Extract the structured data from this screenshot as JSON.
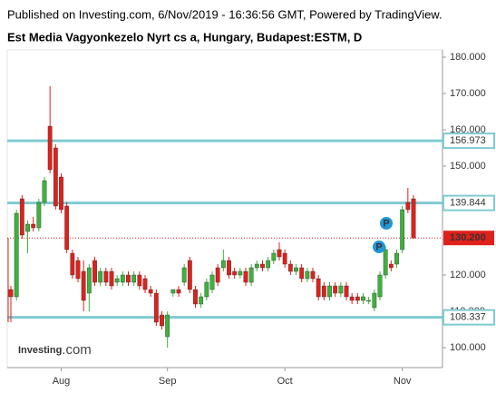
{
  "chart_data": {
    "type": "candlestick",
    "subtitle": "Published on Investing.com, 6/Nov/2019 - 16:36:56 GMT, Powered by TradingView.",
    "title": "Est Media Vagyonkezelo Nyrt cs a, Hungary, Budapest:ESTM, D",
    "logo": {
      "main": "Investing",
      "suffix": ".com"
    },
    "categories": [
      null,
      null,
      null,
      null,
      null,
      null,
      null,
      null,
      null,
      "Aug",
      null,
      null,
      null,
      null,
      null,
      null,
      null,
      null,
      null,
      null,
      null,
      null,
      null,
      null,
      null,
      null,
      null,
      null,
      "Sep",
      null,
      null,
      null,
      null,
      null,
      null,
      null,
      null,
      null,
      null,
      null,
      null,
      null,
      null,
      null,
      null,
      null,
      null,
      null,
      null,
      "Oct",
      null,
      null,
      null,
      null,
      null,
      null,
      null,
      null,
      null,
      null,
      null,
      null,
      null,
      null,
      null,
      null,
      null,
      null,
      null,
      null,
      "Nov",
      null,
      null
    ],
    "open": [
      116,
      114,
      141,
      132,
      134,
      133,
      140,
      161,
      155,
      147,
      139,
      126,
      124,
      121,
      115,
      124,
      118,
      121,
      121,
      118,
      118,
      120,
      118,
      120,
      119,
      116,
      115,
      109,
      103,
      115,
      116,
      118,
      124,
      116,
      112,
      114,
      116,
      122,
      122,
      124,
      121,
      120,
      121,
      118,
      122,
      123,
      122,
      124,
      127,
      126,
      123,
      121,
      122,
      119,
      121,
      119,
      117,
      114,
      117,
      115,
      117,
      114,
      114,
      113,
      113,
      111,
      114,
      120,
      123,
      123,
      127,
      140,
      141
    ],
    "high": [
      117,
      138,
      142,
      135,
      136,
      141,
      147,
      172,
      156,
      148,
      140,
      127,
      125,
      124,
      123,
      125,
      122,
      122,
      122,
      120,
      121,
      121,
      121,
      121,
      120,
      117,
      116,
      110,
      110,
      116,
      117,
      123,
      125,
      117,
      115,
      119,
      121,
      123,
      127,
      125,
      122,
      122,
      122,
      123,
      124,
      124,
      125,
      127,
      129,
      127,
      124,
      123,
      123,
      122,
      122,
      120,
      118,
      118,
      118,
      118,
      118,
      115,
      115,
      115,
      114,
      116,
      121,
      128,
      124,
      127,
      139,
      144,
      142
    ],
    "low": [
      107,
      113,
      130,
      126,
      132,
      132,
      139,
      148,
      138,
      137,
      126,
      119,
      118,
      110,
      110,
      117,
      117,
      117,
      116,
      117,
      117,
      117,
      117,
      116,
      115,
      114,
      106,
      105,
      100,
      114,
      114,
      117,
      115,
      111,
      111,
      113,
      115,
      117,
      121,
      119,
      119,
      119,
      117,
      117,
      121,
      121,
      121,
      123,
      124,
      122,
      120,
      120,
      118,
      118,
      118,
      113,
      113,
      113,
      114,
      114,
      113,
      112,
      112,
      112,
      112,
      110,
      113,
      119,
      121,
      122,
      126,
      137,
      130
    ],
    "close": [
      114,
      137,
      131,
      134,
      133,
      140,
      146,
      149,
      139,
      138,
      127,
      120,
      119,
      113,
      122,
      118,
      121,
      118,
      117,
      119,
      120,
      118,
      120,
      117,
      116,
      115,
      107,
      106,
      109,
      116,
      115,
      122,
      116,
      112,
      114,
      118,
      120,
      118,
      124,
      120,
      120,
      121,
      118,
      122,
      123,
      122,
      124,
      126,
      125,
      123,
      121,
      122,
      119,
      121,
      119,
      114,
      114,
      117,
      115,
      117,
      114,
      113,
      113,
      114,
      113,
      115,
      120,
      127,
      122,
      126,
      138,
      138,
      130.2
    ],
    "up_color": "#3bb33b",
    "down_color": "#e0201b",
    "ylim": [
      94.5,
      182
    ],
    "yticks": [
      {
        "value": 100,
        "label": "100.000"
      },
      {
        "value": 110,
        "label": "110.000"
      },
      {
        "value": 120,
        "label": "120.000"
      },
      {
        "value": 130,
        "label": "130.000"
      },
      {
        "value": 140,
        "label": "140.000"
      },
      {
        "value": 150,
        "label": "150.000"
      },
      {
        "value": 160,
        "label": "160.000"
      },
      {
        "value": 170,
        "label": "170.000"
      },
      {
        "value": 180,
        "label": "180.000"
      }
    ],
    "levels": [
      {
        "value": 156.973,
        "label": "156.973"
      },
      {
        "value": 139.844,
        "label": "139.844"
      },
      {
        "value": 108.337,
        "label": "108.337"
      }
    ],
    "level_color": "#7fcbd2",
    "last_price": {
      "value": 130.2,
      "label": "130.200"
    },
    "event_markers": [
      "P",
      "P"
    ]
  }
}
